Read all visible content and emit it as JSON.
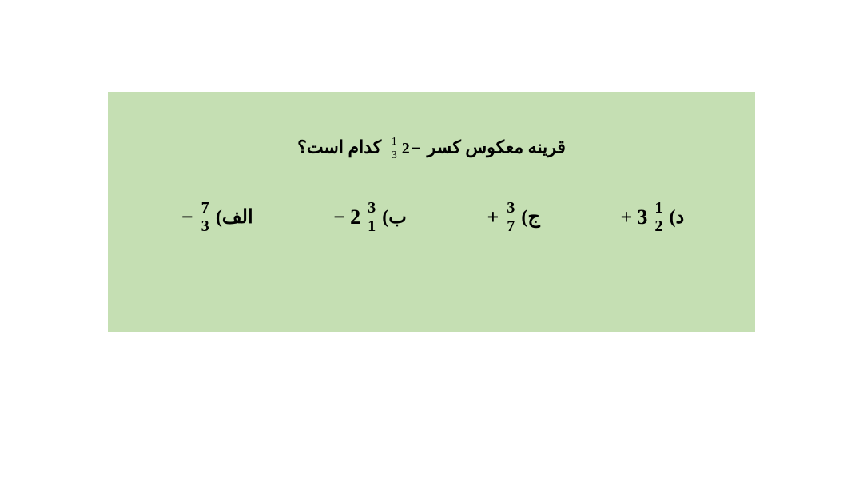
{
  "card": {
    "background_color": "#c5dfb3",
    "text_color": "#000000"
  },
  "question": {
    "prefix": "قرینه معکوس کسر",
    "mixed_sign": "−",
    "mixed_whole": "2",
    "mixed_num": "1",
    "mixed_den": "3",
    "suffix": "کدام است؟"
  },
  "options": {
    "a": {
      "label": "الف)",
      "sign": "−",
      "num": "7",
      "den": "3"
    },
    "b": {
      "label": "ب)",
      "sign": "−",
      "whole": "2",
      "num": "3",
      "den": "1"
    },
    "c": {
      "label": "ج)",
      "sign": "+",
      "num": "3",
      "den": "7"
    },
    "d": {
      "label": "د)",
      "sign": "+",
      "whole": "3",
      "num": "1",
      "den": "2"
    }
  }
}
